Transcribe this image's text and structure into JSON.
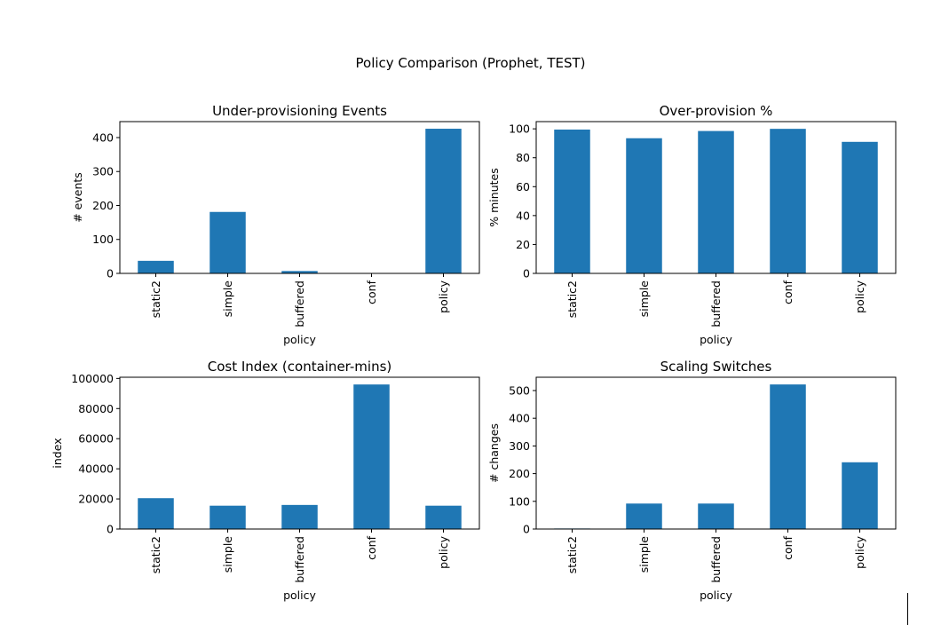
{
  "figure": {
    "suptitle": "Policy Comparison (Prophet, TEST)",
    "bar_color": "#1f77b4"
  },
  "chart_data": [
    {
      "type": "bar",
      "title": "Under-provisioning Events",
      "xlabel": "policy",
      "ylabel": "# events",
      "categories": [
        "static2",
        "simple",
        "buffered",
        "conf",
        "policy"
      ],
      "values": [
        37,
        181,
        7,
        0,
        426
      ],
      "ylim": [
        0,
        447
      ],
      "yticks": [
        0,
        100,
        200,
        300,
        400
      ]
    },
    {
      "type": "bar",
      "title": "Over-provision %",
      "xlabel": "policy",
      "ylabel": "% minutes",
      "categories": [
        "static2",
        "simple",
        "buffered",
        "conf",
        "policy"
      ],
      "values": [
        99.5,
        93.5,
        98.5,
        100,
        91
      ],
      "ylim": [
        0,
        105
      ],
      "yticks": [
        0,
        20,
        40,
        60,
        80,
        100
      ]
    },
    {
      "type": "bar",
      "title": "Cost Index (container-mins)",
      "xlabel": "policy",
      "ylabel": "index",
      "categories": [
        "static2",
        "simple",
        "buffered",
        "conf",
        "policy"
      ],
      "values": [
        20500,
        15500,
        16000,
        96000,
        15500
      ],
      "ylim": [
        0,
        100800
      ],
      "yticks": [
        0,
        20000,
        40000,
        60000,
        80000,
        100000
      ]
    },
    {
      "type": "bar",
      "title": "Scaling Switches",
      "xlabel": "policy",
      "ylabel": "# changes",
      "categories": [
        "static2",
        "simple",
        "buffered",
        "conf",
        "policy"
      ],
      "values": [
        2,
        92,
        92,
        522,
        241
      ],
      "ylim": [
        0,
        548
      ],
      "yticks": [
        0,
        100,
        200,
        300,
        400,
        500
      ]
    }
  ]
}
